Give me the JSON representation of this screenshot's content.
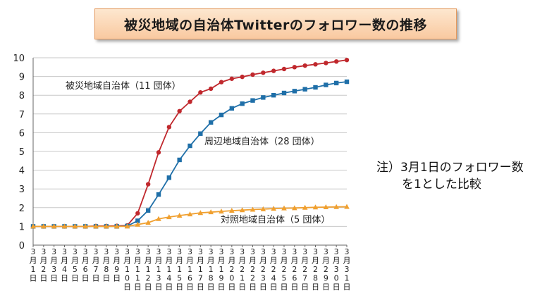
{
  "title": "被災地域の自治体Twitterのフォロワー数の推移",
  "note": {
    "line1": "注）3月1日のフォロワー数",
    "line2": "を1とした比較"
  },
  "colors": {
    "series1": "#c0282d",
    "series2": "#1f6fa8",
    "series3": "#f0a030",
    "title_bg": "#fbd5b0",
    "title_border": "#e59a5e"
  },
  "chart_data": {
    "type": "line",
    "ylim": [
      0,
      10
    ],
    "yticks": [
      "0",
      "1",
      "2",
      "3",
      "4",
      "5",
      "6",
      "7",
      "8",
      "9",
      "10"
    ],
    "categories": [
      "3月1日",
      "3月2日",
      "3月3日",
      "3月4日",
      "3月5日",
      "3月6日",
      "3月7日",
      "3月8日",
      "3月9日",
      "3月10日",
      "3月11日",
      "3月12日",
      "3月13日",
      "3月14日",
      "3月15日",
      "3月16日",
      "3月17日",
      "3月18日",
      "3月19日",
      "3月20日",
      "3月21日",
      "3月22日",
      "3月23日",
      "3月24日",
      "3月25日",
      "3月26日",
      "3月27日",
      "3月28日",
      "3月29日",
      "3月30日",
      "3月31日"
    ],
    "series": [
      {
        "name": "被災地域自治体（11 団体）",
        "marker": "circle",
        "values": [
          1.0,
          1.0,
          1.0,
          1.0,
          1.0,
          1.0,
          1.02,
          1.02,
          1.03,
          1.05,
          1.7,
          3.25,
          4.95,
          6.3,
          7.15,
          7.65,
          8.15,
          8.35,
          8.7,
          8.88,
          8.98,
          9.1,
          9.2,
          9.3,
          9.4,
          9.5,
          9.58,
          9.65,
          9.72,
          9.8,
          9.88
        ]
      },
      {
        "name": "周辺地域自治体（28 団体）",
        "marker": "square",
        "values": [
          1.0,
          1.0,
          1.0,
          1.0,
          1.0,
          1.0,
          1.0,
          1.0,
          1.0,
          1.02,
          1.3,
          1.85,
          2.7,
          3.6,
          4.55,
          5.3,
          5.95,
          6.55,
          6.95,
          7.3,
          7.55,
          7.72,
          7.88,
          8.0,
          8.12,
          8.22,
          8.32,
          8.42,
          8.55,
          8.65,
          8.72
        ]
      },
      {
        "name": "対照地域自治体（5 団体）",
        "marker": "triangle",
        "values": [
          1.0,
          1.0,
          1.0,
          1.0,
          1.0,
          1.0,
          1.0,
          1.0,
          1.0,
          1.0,
          1.1,
          1.2,
          1.4,
          1.5,
          1.58,
          1.65,
          1.72,
          1.76,
          1.8,
          1.84,
          1.87,
          1.9,
          1.92,
          1.95,
          1.97,
          1.98,
          2.0,
          2.02,
          2.03,
          2.04,
          2.05
        ]
      }
    ]
  }
}
